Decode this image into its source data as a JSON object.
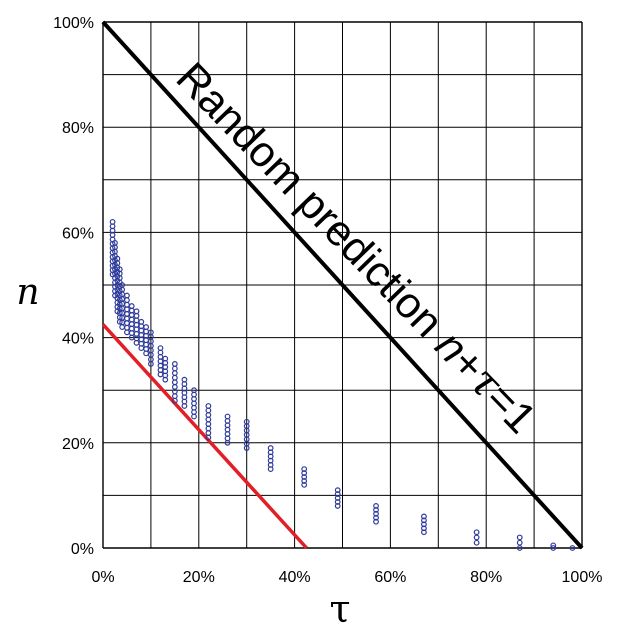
{
  "chart_data": {
    "type": "scatter",
    "xlabel": "τ",
    "ylabel": "n",
    "xlim": [
      0,
      1
    ],
    "ylim": [
      0,
      1
    ],
    "x_ticks": [
      "0%",
      "20%",
      "40%",
      "60%",
      "80%",
      "100%"
    ],
    "y_ticks": [
      "0%",
      "20%",
      "40%",
      "60%",
      "80%",
      "100%"
    ],
    "grid": true,
    "colors": {
      "points": "#2e3a9a",
      "random_line": "#000000",
      "red_line": "#e21f26",
      "grid": "#000000"
    },
    "annotation": {
      "text_main": "Random prediction ",
      "text_formula_parts": [
        "n",
        "+",
        "τ",
        "=1"
      ]
    },
    "lines": [
      {
        "name": "random",
        "color": "#000000",
        "points": [
          [
            0,
            1
          ],
          [
            1,
            0
          ]
        ]
      },
      {
        "name": "bound",
        "color": "#e21f26",
        "points": [
          [
            0,
            0.425
          ],
          [
            0.425,
            0
          ]
        ]
      }
    ],
    "series": [
      {
        "columns": [
          {
            "x": 0.02,
            "ymin": 0.52,
            "ymax": 0.62
          },
          {
            "x": 0.025,
            "ymin": 0.48,
            "ymax": 0.58
          },
          {
            "x": 0.03,
            "ymin": 0.45,
            "ymax": 0.55
          },
          {
            "x": 0.035,
            "ymin": 0.43,
            "ymax": 0.53
          },
          {
            "x": 0.04,
            "ymin": 0.42,
            "ymax": 0.5
          },
          {
            "x": 0.05,
            "ymin": 0.41,
            "ymax": 0.48
          },
          {
            "x": 0.06,
            "ymin": 0.4,
            "ymax": 0.46
          },
          {
            "x": 0.07,
            "ymin": 0.39,
            "ymax": 0.45
          },
          {
            "x": 0.08,
            "ymin": 0.38,
            "ymax": 0.43
          },
          {
            "x": 0.09,
            "ymin": 0.37,
            "ymax": 0.42
          },
          {
            "x": 0.1,
            "ymin": 0.35,
            "ymax": 0.41
          },
          {
            "x": 0.12,
            "ymin": 0.33,
            "ymax": 0.38
          },
          {
            "x": 0.13,
            "ymin": 0.32,
            "ymax": 0.36
          },
          {
            "x": 0.15,
            "ymin": 0.28,
            "ymax": 0.35
          },
          {
            "x": 0.17,
            "ymin": 0.27,
            "ymax": 0.32
          },
          {
            "x": 0.19,
            "ymin": 0.25,
            "ymax": 0.3
          },
          {
            "x": 0.22,
            "ymin": 0.21,
            "ymax": 0.27
          },
          {
            "x": 0.26,
            "ymin": 0.2,
            "ymax": 0.25
          },
          {
            "x": 0.3,
            "ymin": 0.19,
            "ymax": 0.24
          },
          {
            "x": 0.35,
            "ymin": 0.15,
            "ymax": 0.19
          },
          {
            "x": 0.42,
            "ymin": 0.12,
            "ymax": 0.15
          },
          {
            "x": 0.49,
            "ymin": 0.08,
            "ymax": 0.11
          },
          {
            "x": 0.57,
            "ymin": 0.05,
            "ymax": 0.08
          },
          {
            "x": 0.67,
            "ymin": 0.03,
            "ymax": 0.06
          },
          {
            "x": 0.78,
            "ymin": 0.01,
            "ymax": 0.03
          },
          {
            "x": 0.87,
            "ymin": 0.0,
            "ymax": 0.02
          },
          {
            "x": 0.94,
            "ymin": 0.0,
            "ymax": 0.005
          },
          {
            "x": 0.98,
            "ymin": 0.0,
            "ymax": 0.0
          }
        ]
      }
    ]
  }
}
